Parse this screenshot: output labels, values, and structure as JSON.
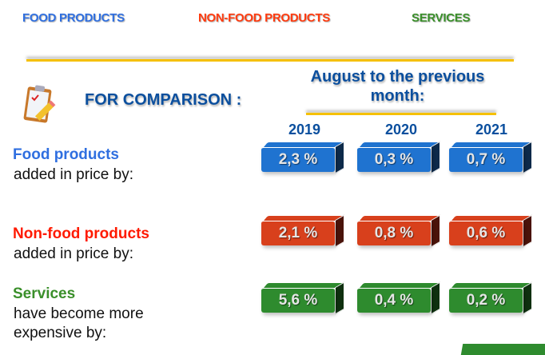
{
  "header": {
    "categories": [
      {
        "label": "FOOD PRODUCTS",
        "color": "#2f6fe0"
      },
      {
        "label": "NON-FOOD PRODUCTS",
        "color": "#ff3b0f"
      },
      {
        "label": "SERVICES",
        "color": "#3a8f2a"
      }
    ]
  },
  "comparison": {
    "title": "FOR COMPARISON :",
    "icon": "clipboard-pencil-icon",
    "period": "August to the previous month:"
  },
  "years": [
    "2019",
    "2020",
    "2021"
  ],
  "rows": [
    {
      "label": "Food products",
      "sub": "added in price by:",
      "color": "#2f6fe0",
      "box_color": "#1f73d0",
      "side": "#0d2a4a",
      "values": [
        "2,3 %",
        "0,3 %",
        "0,7 %"
      ]
    },
    {
      "label": "Non-food products",
      "sub": "added in price by:",
      "color": "#ff1a00",
      "box_color": "#d8401c",
      "side": "#4a130a",
      "values": [
        "2,1 %",
        "0,8 %",
        "0,6 %"
      ]
    },
    {
      "label": "Services",
      "sub": "have become more expensive by:",
      "color": "#3a8f2a",
      "box_color": "#2e8b2e",
      "side": "#0f3010",
      "values": [
        "5,6 %",
        "0,4 %",
        "0,2 %"
      ]
    }
  ]
}
